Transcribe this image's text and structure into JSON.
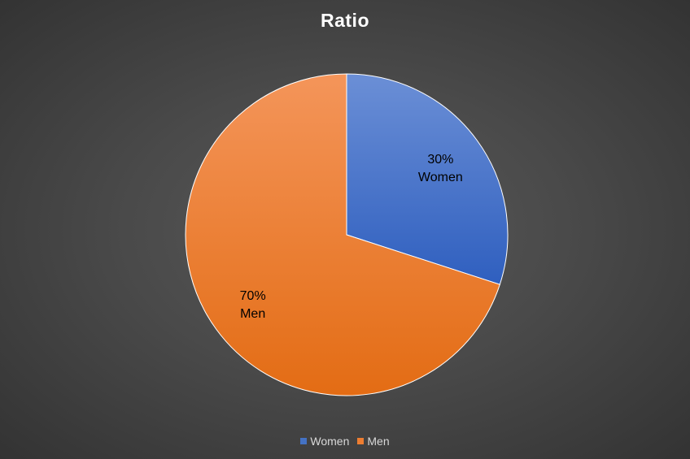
{
  "chart_data": {
    "type": "pie",
    "title": "Ratio",
    "categories": [
      "Women",
      "Men"
    ],
    "values": [
      30,
      70
    ],
    "data_labels": [
      {
        "percent": "30%",
        "category": "Women"
      },
      {
        "percent": "70%",
        "category": "Men"
      }
    ],
    "colors": [
      "#4472C4",
      "#ED7D31"
    ],
    "legend_position": "bottom",
    "legend": [
      "Women",
      "Men"
    ]
  },
  "theme": {
    "background": "#404040",
    "title_color": "#FFFFFF",
    "label_color": "#000000",
    "legend_text_color": "#D9D9D9"
  }
}
